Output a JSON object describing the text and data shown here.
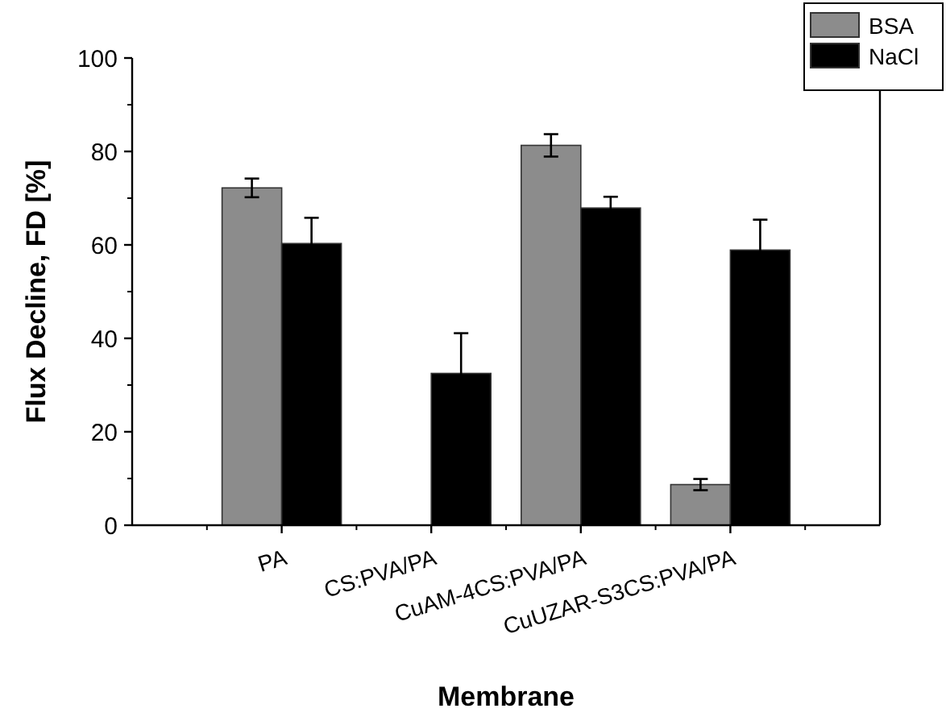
{
  "chart_data": {
    "type": "bar",
    "xlabel": "Membrane",
    "ylabel": "Flux Decline, FD [%]",
    "categories": [
      "PA",
      "CS:PVA/PA",
      "CuAM-4CS:PVA/PA",
      "CuUZAR-S3CS:PVA/PA"
    ],
    "series": [
      {
        "name": "BSA",
        "color": "#8c8c8c",
        "values": [
          72.2,
          null,
          81.3,
          8.7
        ],
        "errors": [
          2,
          null,
          2.4,
          1.2
        ]
      },
      {
        "name": "NaCl",
        "color": "#000000",
        "values": [
          60.3,
          32.5,
          67.9,
          58.9
        ],
        "errors": [
          5.5,
          8.6,
          2.4,
          6.5
        ]
      }
    ],
    "ylim": [
      0,
      100
    ],
    "yticks": [
      0,
      20,
      40,
      60,
      80,
      100
    ],
    "legend": "top right",
    "grid": false
  }
}
